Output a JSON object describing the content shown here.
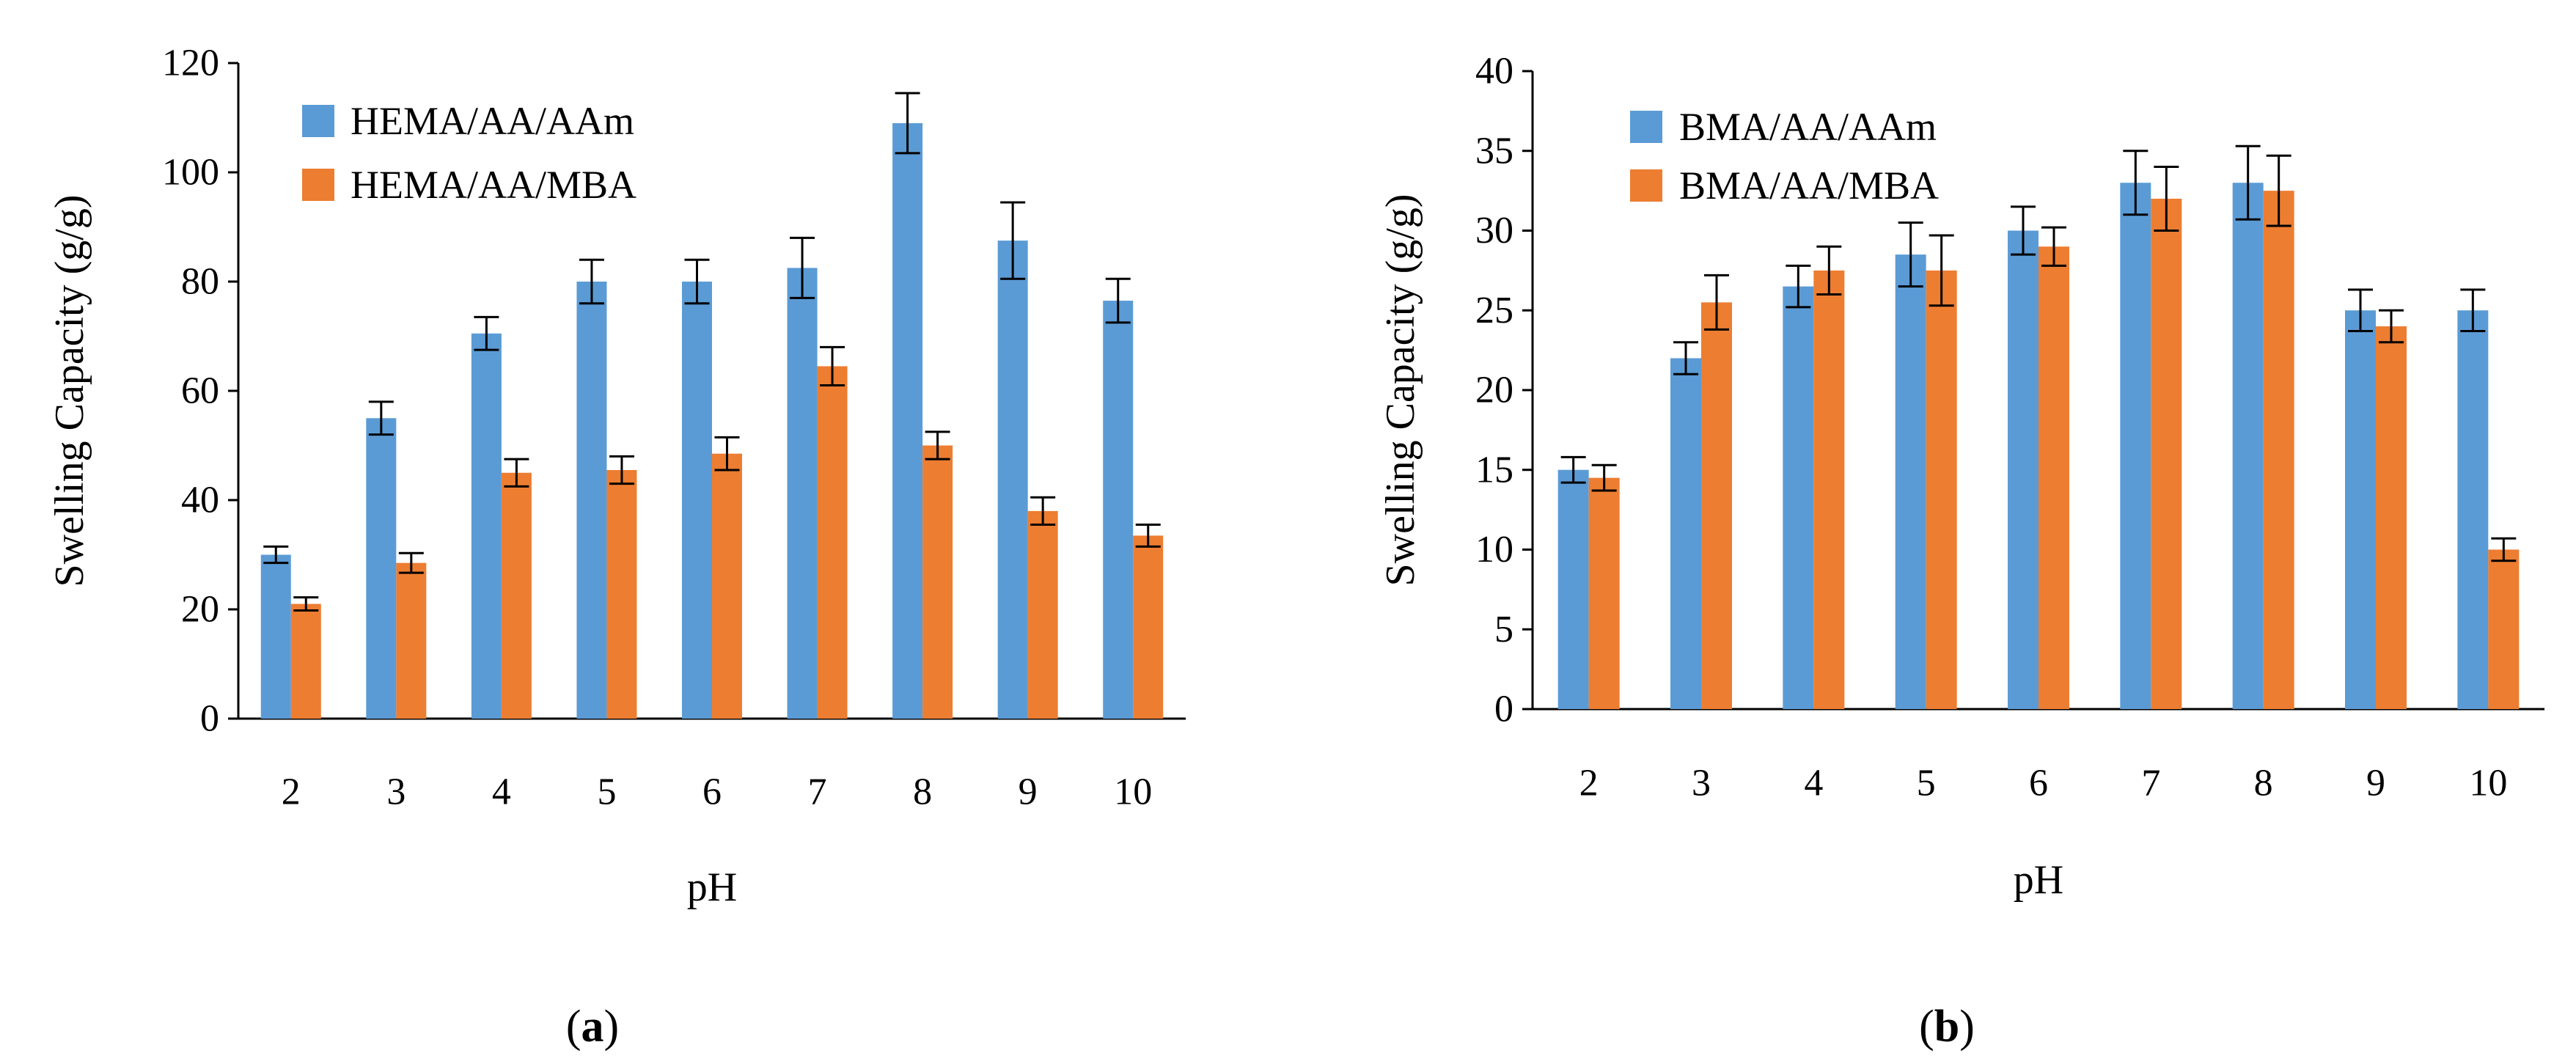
{
  "chart_data": [
    {
      "type": "bar",
      "panel_label": "a",
      "xlabel": "pH",
      "ylabel": "Swelling Capacity (g/g)",
      "categories": [
        "2",
        "3",
        "4",
        "5",
        "6",
        "7",
        "8",
        "9",
        "10"
      ],
      "ylim": [
        0,
        120
      ],
      "yticks": [
        0,
        20,
        40,
        60,
        80,
        100,
        120
      ],
      "legend_position": "top-left",
      "grid": false,
      "series": [
        {
          "name": "HEMA/AA/AAm",
          "color": "#5b9bd5",
          "values": [
            30,
            55,
            70.5,
            80,
            80,
            82.5,
            109,
            87.5,
            76.5
          ],
          "errors": [
            1.5,
            3,
            3,
            4,
            4,
            5.5,
            5.5,
            7,
            4
          ]
        },
        {
          "name": "HEMA/AA/MBA",
          "color": "#ed7d31",
          "values": [
            21,
            28.5,
            45,
            45.5,
            48.5,
            64.5,
            50,
            38,
            33.5
          ],
          "errors": [
            1.2,
            1.8,
            2.5,
            2.5,
            3,
            3.5,
            2.5,
            2.5,
            2
          ]
        }
      ]
    },
    {
      "type": "bar",
      "panel_label": "b",
      "xlabel": "pH",
      "ylabel": "Swelling Capacity (g/g)",
      "categories": [
        "2",
        "3",
        "4",
        "5",
        "6",
        "7",
        "8",
        "9",
        "10"
      ],
      "ylim": [
        0,
        40
      ],
      "yticks": [
        0,
        5,
        10,
        15,
        20,
        25,
        30,
        35,
        40
      ],
      "legend_position": "top-left",
      "grid": false,
      "series": [
        {
          "name": "BMA/AA/AAm",
          "color": "#5b9bd5",
          "values": [
            15,
            22,
            26.5,
            28.5,
            30,
            33,
            33,
            25,
            25
          ],
          "errors": [
            0.8,
            1,
            1.3,
            2,
            1.5,
            2,
            2.3,
            1.3,
            1.3
          ]
        },
        {
          "name": "BMA/AA/MBA",
          "color": "#ed7d31",
          "values": [
            14.5,
            25.5,
            27.5,
            27.5,
            29,
            32,
            32.5,
            24,
            10
          ],
          "errors": [
            0.8,
            1.7,
            1.5,
            2.2,
            1.2,
            2,
            2.2,
            1,
            0.7
          ]
        }
      ]
    }
  ]
}
